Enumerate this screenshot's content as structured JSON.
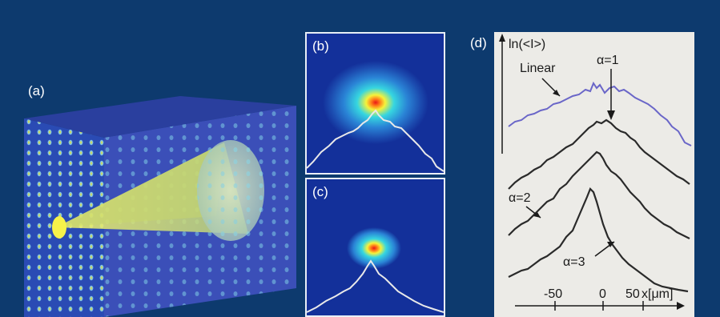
{
  "figure": {
    "panel_labels": {
      "a": "(a)",
      "b": "(b)",
      "c": "(c)",
      "d": "(d)"
    }
  },
  "panel_d": {
    "y_axis_label": "ln(<I>)",
    "curve_labels": {
      "linear": "Linear",
      "alpha1": "α=1",
      "alpha2": "α=2",
      "alpha3": "α=3"
    },
    "x_axis": {
      "ticks": [
        "-50",
        "0",
        "50"
      ],
      "label": "x[μm]"
    }
  },
  "colors": {
    "background": "#0d3a6e",
    "linear_curve": "#6a66c8",
    "curve": "#2a2a2a",
    "profile_line": "#e9e9e9"
  }
}
